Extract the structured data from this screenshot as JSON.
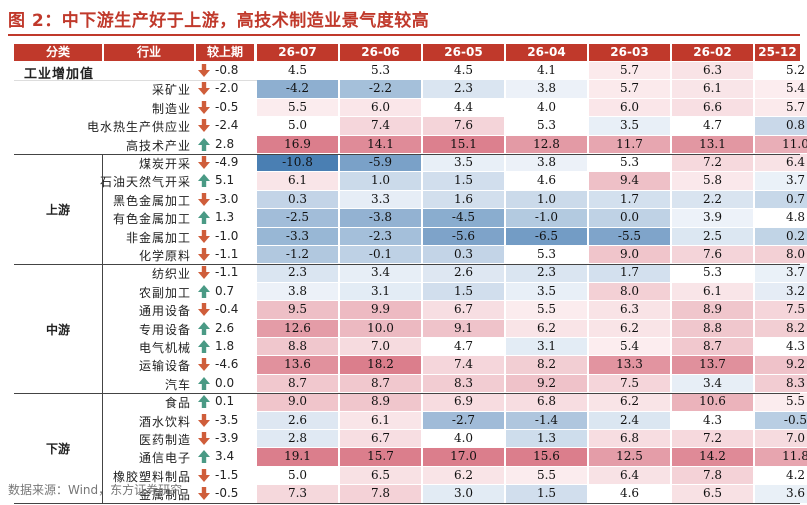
{
  "title": "图 2：中下游生产好于上游，高技术制造业景气度较高",
  "source": "数据来源：Wind，东方证券研究",
  "colors": {
    "up_arrow": "#4a9a85",
    "down_arrow": "#cf5d3a",
    "header_bg": "#c0392b"
  },
  "headers": [
    "分类",
    "行业",
    "较上期",
    "26-07",
    "26-06",
    "26-05",
    "26-04",
    "26-03",
    "26-02",
    "25-12"
  ],
  "groups": [
    {
      "label": "",
      "rows": [
        {
          "name": "工业增加值",
          "dir": "down",
          "change": "-0.8",
          "values": [
            "4.5",
            "5.3",
            "4.5",
            "4.1",
            "5.7",
            "6.3",
            "5.2"
          ]
        },
        {
          "name": "采矿业",
          "dir": "down",
          "change": "-2.0",
          "values": [
            "-4.2",
            "-2.2",
            "2.3",
            "3.8",
            "5.7",
            "6.1",
            "5.4"
          ]
        },
        {
          "name": "制造业",
          "dir": "down",
          "change": "-0.5",
          "values": [
            "5.5",
            "6.0",
            "4.4",
            "4.0",
            "6.0",
            "6.6",
            "5.7"
          ]
        },
        {
          "name": "电水热生产供应业",
          "dir": "down",
          "change": "-2.4",
          "values": [
            "5.0",
            "7.4",
            "7.6",
            "5.3",
            "3.5",
            "4.7",
            "0.8"
          ]
        },
        {
          "name": "高技术产业",
          "dir": "up",
          "change": "2.8",
          "values": [
            "16.9",
            "14.1",
            "15.1",
            "12.8",
            "11.7",
            "13.1",
            "11.0"
          ]
        }
      ]
    },
    {
      "label": "上游",
      "rows": [
        {
          "name": "煤炭开采",
          "dir": "down",
          "change": "-4.9",
          "values": [
            "-10.8",
            "-5.9",
            "3.5",
            "3.8",
            "5.3",
            "7.2",
            "6.4"
          ]
        },
        {
          "name": "石油天然气开采",
          "dir": "up",
          "change": "5.1",
          "values": [
            "6.1",
            "1.0",
            "1.5",
            "4.6",
            "9.4",
            "5.8",
            "3.7"
          ]
        },
        {
          "name": "黑色金属加工",
          "dir": "down",
          "change": "-3.0",
          "values": [
            "0.3",
            "3.3",
            "1.6",
            "1.0",
            "1.7",
            "2.2",
            "0.7"
          ]
        },
        {
          "name": "有色金属加工",
          "dir": "up",
          "change": "1.3",
          "values": [
            "-2.5",
            "-3.8",
            "-4.5",
            "-1.0",
            "0.0",
            "3.9",
            "4.8"
          ]
        },
        {
          "name": "非金属加工",
          "dir": "down",
          "change": "-1.0",
          "values": [
            "-3.3",
            "-2.3",
            "-5.6",
            "-6.5",
            "-5.5",
            "2.5",
            "0.2"
          ]
        },
        {
          "name": "化学原料",
          "dir": "down",
          "change": "-1.1",
          "values": [
            "-1.2",
            "-0.1",
            "0.3",
            "5.3",
            "9.0",
            "7.6",
            "8.0"
          ]
        }
      ]
    },
    {
      "label": "中游",
      "rows": [
        {
          "name": "纺织业",
          "dir": "down",
          "change": "-1.1",
          "values": [
            "2.3",
            "3.4",
            "2.6",
            "2.3",
            "1.7",
            "5.3",
            "3.7"
          ]
        },
        {
          "name": "农副加工",
          "dir": "up",
          "change": "0.7",
          "values": [
            "3.8",
            "3.1",
            "1.5",
            "3.5",
            "8.0",
            "6.1",
            "3.2"
          ]
        },
        {
          "name": "通用设备",
          "dir": "down",
          "change": "-0.4",
          "values": [
            "9.5",
            "9.9",
            "6.7",
            "5.5",
            "6.3",
            "8.9",
            "7.5"
          ]
        },
        {
          "name": "专用设备",
          "dir": "up",
          "change": "2.6",
          "values": [
            "12.6",
            "10.0",
            "9.1",
            "6.2",
            "6.2",
            "8.8",
            "8.2"
          ]
        },
        {
          "name": "电气机械",
          "dir": "up",
          "change": "1.8",
          "values": [
            "8.8",
            "7.0",
            "4.7",
            "3.1",
            "5.4",
            "8.7",
            "4.3"
          ]
        },
        {
          "name": "运输设备",
          "dir": "down",
          "change": "-4.6",
          "values": [
            "13.6",
            "18.2",
            "7.4",
            "8.2",
            "13.3",
            "13.7",
            "9.2"
          ]
        },
        {
          "name": "汽车",
          "dir": "up",
          "change": "0.0",
          "values": [
            "8.7",
            "8.7",
            "8.3",
            "9.2",
            "7.5",
            "3.4",
            "8.3"
          ]
        }
      ]
    },
    {
      "label": "下游",
      "rows": [
        {
          "name": "食品",
          "dir": "up",
          "change": "0.1",
          "values": [
            "9.0",
            "8.9",
            "6.9",
            "6.8",
            "6.2",
            "10.6",
            "5.5"
          ]
        },
        {
          "name": "酒水饮料",
          "dir": "down",
          "change": "-3.5",
          "values": [
            "2.6",
            "6.1",
            "-2.7",
            "-1.4",
            "2.4",
            "4.3",
            "-0.5"
          ]
        },
        {
          "name": "医药制造",
          "dir": "down",
          "change": "-3.9",
          "values": [
            "2.8",
            "6.7",
            "4.0",
            "1.3",
            "6.8",
            "7.2",
            "7.0"
          ]
        },
        {
          "name": "通信电子",
          "dir": "up",
          "change": "3.4",
          "values": [
            "19.1",
            "15.7",
            "17.0",
            "15.6",
            "12.5",
            "14.2",
            "11.8"
          ]
        },
        {
          "name": "橡胶塑料制品",
          "dir": "down",
          "change": "-1.5",
          "values": [
            "5.0",
            "6.5",
            "6.2",
            "5.5",
            "6.4",
            "7.8",
            "4.2"
          ]
        },
        {
          "name": "金属制品",
          "dir": "down",
          "change": "-0.5",
          "values": [
            "7.3",
            "7.8",
            "3.0",
            "1.5",
            "4.6",
            "6.5",
            "3.6"
          ]
        }
      ]
    }
  ]
}
